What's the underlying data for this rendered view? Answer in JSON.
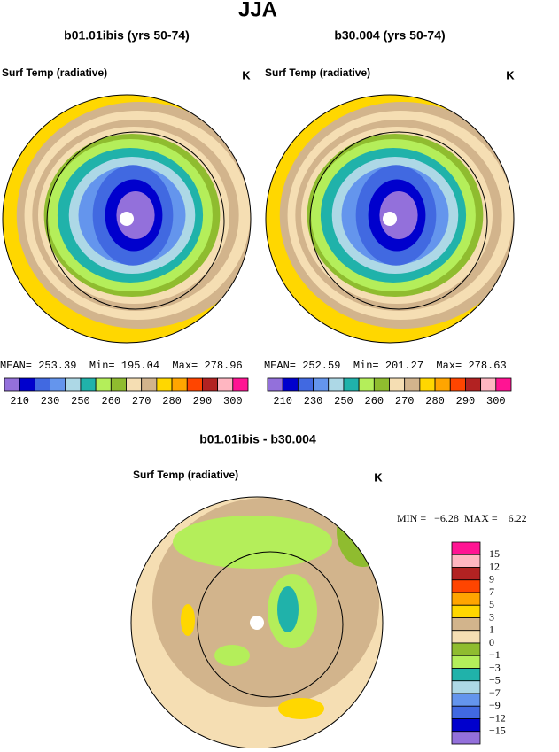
{
  "title": "JJA",
  "panels": [
    {
      "title": "b01.01ibis (yrs 50-74)",
      "variable": "Surf Temp (radiative)",
      "units": "K",
      "stats": "MEAN= 253.39  Min= 195.04  Max= 278.96"
    },
    {
      "title": "b30.004 (yrs 50-74)",
      "variable": "Surf Temp (radiative)",
      "units": "K",
      "stats": "MEAN= 252.59  Min= 201.27  Max= 278.63"
    }
  ],
  "colorbar": {
    "colors": [
      "#9370db",
      "#0000cd",
      "#4169e1",
      "#6495ed",
      "#add8e6",
      "#20b2aa",
      "#b4ee5a",
      "#8fbc2f",
      "#f5deb3",
      "#d2b48c",
      "#ffd700",
      "#ffa500",
      "#ff4500",
      "#b22222",
      "#ffb6c1",
      "#ff1493"
    ],
    "labels": [
      "210",
      "230",
      "250",
      "260",
      "270",
      "280",
      "290",
      "300"
    ]
  },
  "difference": {
    "title": "b01.01ibis - b30.004",
    "variable": "Surf Temp (radiative)",
    "units": "K",
    "stats": "MIN =   −6.28  MAX =    6.22",
    "colors": [
      "#ff1493",
      "#ffb6c1",
      "#b22222",
      "#ff4500",
      "#ffa500",
      "#ffd700",
      "#d2b48c",
      "#f5deb3",
      "#8fbc2f",
      "#b4ee5a",
      "#20b2aa",
      "#add8e6",
      "#6495ed",
      "#4169e1",
      "#0000cd",
      "#9370db"
    ],
    "labels": [
      "15",
      "12",
      "9",
      "7",
      "5",
      "3",
      "1",
      "0",
      "−1",
      "−3",
      "−5",
      "−7",
      "−9",
      "−12",
      "−15"
    ]
  }
}
